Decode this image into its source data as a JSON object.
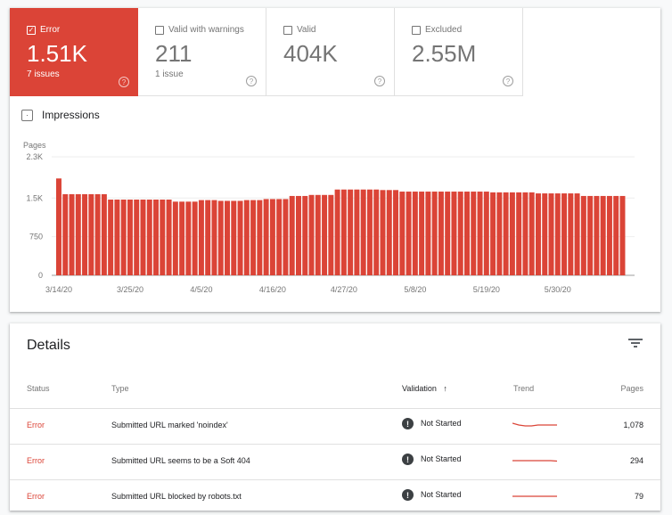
{
  "tiles": [
    {
      "label": "Error",
      "value": "1.51K",
      "sub": "7 issues",
      "selected": true,
      "color": "#db4437"
    },
    {
      "label": "Valid with warnings",
      "value": "211",
      "sub": "1 issue",
      "selected": false
    },
    {
      "label": "Valid",
      "value": "404K",
      "sub": "",
      "selected": false
    },
    {
      "label": "Excluded",
      "value": "2.55M",
      "sub": "",
      "selected": false
    }
  ],
  "impressions_label": "Impressions",
  "chart_data": {
    "type": "bar",
    "ylabel": "Pages",
    "ylim": [
      0,
      2300
    ],
    "yticks": [
      "0",
      "750",
      "1.5K",
      "2.3K"
    ],
    "ytick_values": [
      0,
      750,
      1500,
      2300
    ],
    "xtick_labels": [
      "3/14/20",
      "3/25/20",
      "4/5/20",
      "4/16/20",
      "4/27/20",
      "5/8/20",
      "5/19/20",
      "5/30/20"
    ],
    "color": "#db4437",
    "grid": true,
    "categories": [
      "3/14/20",
      "3/15/20",
      "3/16/20",
      "3/17/20",
      "3/18/20",
      "3/19/20",
      "3/20/20",
      "3/21/20",
      "3/22/20",
      "3/23/20",
      "3/24/20",
      "3/25/20",
      "3/26/20",
      "3/27/20",
      "3/28/20",
      "3/29/20",
      "3/30/20",
      "3/31/20",
      "4/1/20",
      "4/2/20",
      "4/3/20",
      "4/4/20",
      "4/5/20",
      "4/6/20",
      "4/7/20",
      "4/8/20",
      "4/9/20",
      "4/10/20",
      "4/11/20",
      "4/12/20",
      "4/13/20",
      "4/14/20",
      "4/15/20",
      "4/16/20",
      "4/17/20",
      "4/18/20",
      "4/19/20",
      "4/20/20",
      "4/21/20",
      "4/22/20",
      "4/23/20",
      "4/24/20",
      "4/25/20",
      "4/26/20",
      "4/27/20",
      "4/28/20",
      "4/29/20",
      "4/30/20",
      "5/1/20",
      "5/2/20",
      "5/3/20",
      "5/4/20",
      "5/5/20",
      "5/6/20",
      "5/7/20",
      "5/8/20",
      "5/9/20",
      "5/10/20",
      "5/11/20",
      "5/12/20",
      "5/13/20",
      "5/14/20",
      "5/15/20",
      "5/16/20",
      "5/17/20",
      "5/18/20",
      "5/19/20",
      "5/20/20",
      "5/21/20",
      "5/22/20",
      "5/23/20",
      "5/24/20",
      "5/25/20",
      "5/26/20",
      "5/27/20",
      "5/28/20",
      "5/29/20",
      "5/30/20",
      "5/31/20",
      "6/1/20",
      "6/2/20",
      "6/3/20",
      "6/4/20",
      "6/5/20",
      "6/6/20",
      "6/7/20",
      "6/8/20",
      "6/9/20"
    ],
    "values": [
      1880,
      1575,
      1575,
      1575,
      1575,
      1575,
      1575,
      1575,
      1470,
      1470,
      1470,
      1470,
      1470,
      1470,
      1470,
      1470,
      1470,
      1470,
      1430,
      1430,
      1430,
      1430,
      1460,
      1460,
      1460,
      1445,
      1445,
      1445,
      1445,
      1460,
      1460,
      1460,
      1480,
      1480,
      1480,
      1480,
      1540,
      1540,
      1540,
      1560,
      1560,
      1560,
      1560,
      1665,
      1665,
      1665,
      1665,
      1665,
      1665,
      1665,
      1655,
      1655,
      1655,
      1625,
      1625,
      1625,
      1625,
      1625,
      1625,
      1625,
      1625,
      1625,
      1625,
      1625,
      1625,
      1625,
      1625,
      1610,
      1610,
      1610,
      1610,
      1610,
      1610,
      1610,
      1590,
      1590,
      1590,
      1590,
      1590,
      1590,
      1590,
      1540,
      1540,
      1540,
      1540,
      1540,
      1540,
      1540
    ]
  },
  "details": {
    "title": "Details",
    "filter_icon": "filter-icon",
    "columns": {
      "status": "Status",
      "type": "Type",
      "validation": "Validation",
      "validation_sort": "↑",
      "trend": "Trend",
      "pages": "Pages"
    },
    "rows": [
      {
        "status": "Error",
        "type": "Submitted URL marked 'noindex'",
        "validation": "Not Started",
        "pages": "1,078",
        "trend": [
          1.2,
          1,
          0.9,
          0.9,
          1,
          1,
          1,
          1
        ]
      },
      {
        "status": "Error",
        "type": "Submitted URL seems to be a Soft 404",
        "validation": "Not Started",
        "pages": "294",
        "trend": [
          1,
          1,
          1,
          1,
          1,
          1,
          1,
          0.95
        ]
      },
      {
        "status": "Error",
        "type": "Submitted URL blocked by robots.txt",
        "validation": "Not Started",
        "pages": "79",
        "trend": [
          1,
          1,
          1,
          1,
          1,
          1,
          1,
          1
        ]
      }
    ]
  }
}
